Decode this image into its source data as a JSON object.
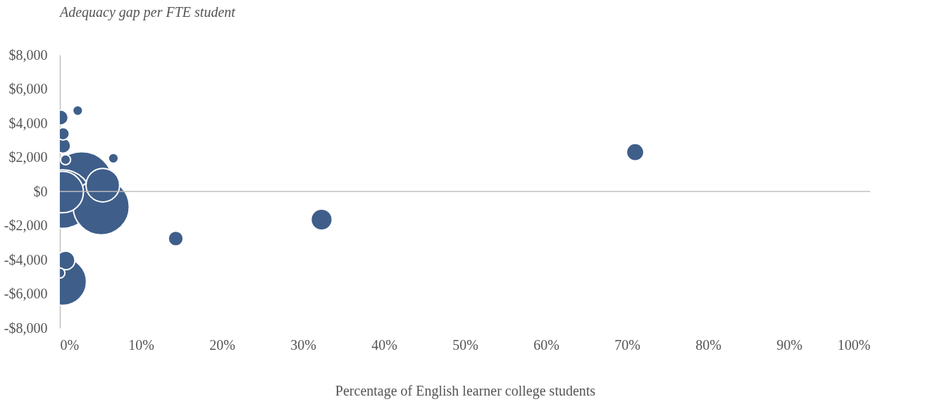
{
  "chart_data": {
    "type": "bubble",
    "title": "Adequacy gap per FTE student",
    "xlabel": "Percentage of English learner college students",
    "x": [
      2.7,
      0.35,
      5.1,
      0.35,
      0.35,
      5.3,
      32.3,
      0.7,
      71.0,
      14.3,
      0.1,
      0.4,
      0.4,
      2.2,
      6.6,
      0.7,
      0.0
    ],
    "series": [
      {
        "color": "#3f5e8a",
        "values": [
          500,
          -450,
          -900,
          -5280,
          -40,
          370,
          -1650,
          -4040,
          2300,
          -2760,
          4330,
          2680,
          3380,
          4740,
          1940,
          1860,
          -4780
        ],
        "sizes": [
          1,
          0.88,
          0.81,
          0.58,
          0.44,
          0.29,
          0.116,
          0.09,
          0.078,
          0.058,
          0.058,
          0.058,
          0.04,
          0.026,
          0.026,
          0.026,
          0.026
        ]
      }
    ],
    "xlim": [
      0,
      100
    ],
    "ylim": [
      -8000,
      8000
    ],
    "xticks": [
      {
        "value": 0,
        "label": "0%"
      },
      {
        "value": 10,
        "label": "10%"
      },
      {
        "value": 20,
        "label": "20%"
      },
      {
        "value": 30,
        "label": "30%"
      },
      {
        "value": 40,
        "label": "40%"
      },
      {
        "value": 50,
        "label": "50%"
      },
      {
        "value": 60,
        "label": "60%"
      },
      {
        "value": 70,
        "label": "70%"
      },
      {
        "value": 80,
        "label": "80%"
      },
      {
        "value": 90,
        "label": "90%"
      },
      {
        "value": 100,
        "label": "100%"
      }
    ],
    "yticks": [
      {
        "value": -8000,
        "label": "-$8,000"
      },
      {
        "value": -6000,
        "label": "-$6,000"
      },
      {
        "value": -4000,
        "label": "-$4,000"
      },
      {
        "value": -2000,
        "label": "-$2,000"
      },
      {
        "value": 0,
        "label": "$0"
      },
      {
        "value": 2000,
        "label": "$2,000"
      },
      {
        "value": 4000,
        "label": "$4,000"
      },
      {
        "value": 6000,
        "label": "$6,000"
      },
      {
        "value": 8000,
        "label": "$8,000"
      }
    ],
    "ref_lines": [
      {
        "axis": "y",
        "value": 0,
        "color": "#bfbfbf"
      }
    ],
    "grid": false,
    "legend": false
  }
}
